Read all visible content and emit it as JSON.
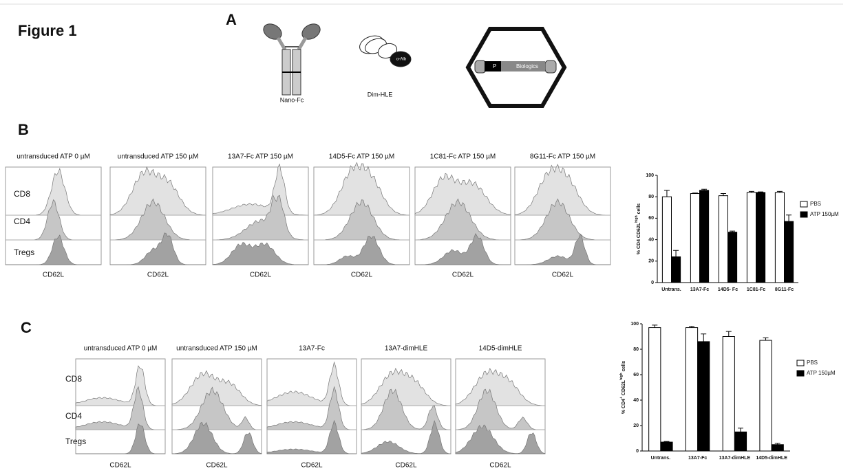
{
  "title": "Figure 1",
  "panel_a": {
    "label": "A",
    "nano_fc": "Nano-Fc",
    "dim_hle": "Dim-HLE",
    "alb": "α-Alb",
    "promoter": "P",
    "biologics": "Biologics"
  },
  "panel_b": {
    "label": "B",
    "row_labels": [
      "CD8",
      "CD4",
      "Tregs"
    ],
    "x_label": "CD62L",
    "titles": [
      "untransduced ATP 0 µM",
      "untransduced ATP 150 µM",
      "13A7-Fc ATP 150 µM",
      "14D5-Fc ATP 150 µM",
      "1C81-Fc ATP 150 µM",
      "8G11-Fc ATP 150 µM"
    ]
  },
  "panel_c": {
    "label": "C",
    "row_labels": [
      "CD8",
      "CD4",
      "Tregs"
    ],
    "x_label": "CD62L",
    "titles": [
      "untransduced ATP 0 µM",
      "untransduced ATP 150 µM",
      "13A7-Fc",
      "13A7-dimHLE",
      "14D5-dimHLE"
    ]
  },
  "chart_data": [
    {
      "type": "bar",
      "y_label": [
        {
          "text": "% CD4 CD62L"
        },
        {
          "text": "high",
          "sup": true
        },
        {
          "text": " cells"
        }
      ],
      "categories": [
        "Untrans.",
        "13A7-Fc",
        "14D5- Fc",
        "1C81-Fc",
        "8G11-Fc"
      ],
      "series": [
        {
          "name": "PBS",
          "color": "#ffffff",
          "values": [
            80,
            83,
            81,
            84,
            84
          ],
          "errors": [
            6,
            0.5,
            2,
            1,
            1
          ]
        },
        {
          "name": "ATP 150µM",
          "color": "#000000",
          "values": [
            24,
            86,
            47,
            84,
            57
          ],
          "errors": [
            6,
            1,
            1,
            0.5,
            6
          ]
        }
      ],
      "ylim": [
        0,
        100
      ],
      "yticks": [
        0,
        20,
        40,
        60,
        80,
        100
      ]
    },
    {
      "type": "bar",
      "y_label": [
        {
          "text": "% CD4"
        },
        {
          "text": "+",
          "sup": true
        },
        {
          "text": " CD62L"
        },
        {
          "text": "high",
          "sup": true
        },
        {
          "text": " cells"
        }
      ],
      "categories": [
        "Untrans.",
        "13A7-Fc",
        "13A7-dimHLE",
        "14D5-dimHLE"
      ],
      "series": [
        {
          "name": "PBS",
          "color": "#ffffff",
          "values": [
            97,
            97,
            90,
            87
          ],
          "errors": [
            2,
            1,
            4,
            2
          ]
        },
        {
          "name": "ATP 150µM",
          "color": "#000000",
          "values": [
            7,
            86,
            15,
            5
          ],
          "errors": [
            0.5,
            6,
            3,
            1
          ]
        }
      ],
      "ylim": [
        0,
        100
      ],
      "yticks": [
        0,
        20,
        40,
        60,
        80,
        100
      ]
    }
  ]
}
